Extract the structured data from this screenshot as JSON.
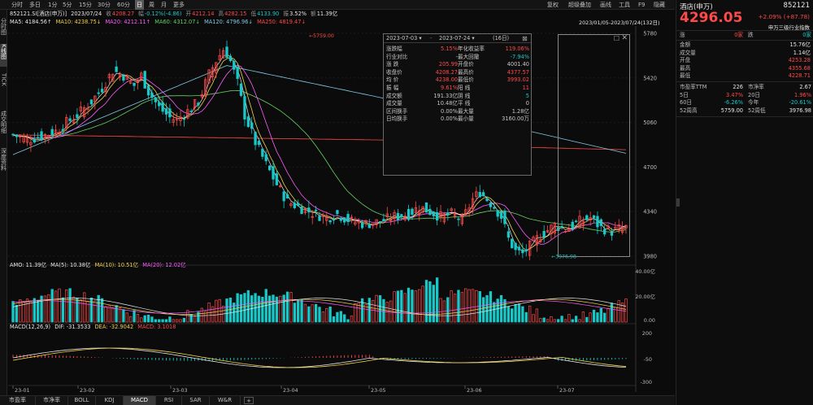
{
  "toolbar": {
    "periods": [
      "分时",
      "多日",
      "1分",
      "5分",
      "15分",
      "30分",
      "60分",
      "日",
      "周",
      "月",
      "更多"
    ],
    "active_period": "日",
    "right_items": [
      "复权",
      "超级叠加",
      "画线",
      "工具",
      "F9",
      "隐藏"
    ]
  },
  "left_tabs": [
    {
      "label": "分时图",
      "active": false
    },
    {
      "label": "K线图",
      "active": true
    },
    {
      "label": "TICK",
      "active": false
    },
    {
      "label": "成交明细",
      "active": false
    },
    {
      "label": "深度资料",
      "active": false
    }
  ],
  "info": {
    "code_name": "852121.SI[酒店(申万)]",
    "date": "2023/07/24",
    "open_label": "收",
    "close": "4208.27",
    "chg_label": "幅",
    "chg": "-0.12%(-4.86)",
    "open2_label": "开",
    "open": "4212.14",
    "high_label": "高",
    "high": "4282.15",
    "low_label": "低",
    "low": "4133.90",
    "amp_label": "振",
    "amp": "3.52%",
    "vol_label": "额",
    "vol": "11.39亿",
    "range_text": "2023/01/05-2023/07/24(132日)"
  },
  "ma_line": [
    {
      "label": "MA5: 4184.56↑",
      "color": "#e6e6e6"
    },
    {
      "label": "MA10: 4238.75↓",
      "color": "#f2d24a"
    },
    {
      "label": "MA20: 4212.11↑",
      "color": "#ff5cff"
    },
    {
      "label": "MA60: 4312.07↓",
      "color": "#64d264"
    },
    {
      "label": "MA120: 4796.96↓",
      "color": "#7ec8e3"
    },
    {
      "label": "MA250: 4819.47↓",
      "color": "#ff4a4a"
    }
  ],
  "amo_line": [
    {
      "label": "AMO: 11.39亿",
      "color": "#e6e6e6"
    },
    {
      "label": "MA(5): 10.38亿",
      "color": "#e6e6e6"
    },
    {
      "label": "MA(10): 10.51亿",
      "color": "#f2d24a"
    },
    {
      "label": "MA(20): 12.02亿",
      "color": "#ff5cff"
    }
  ],
  "macd_line": [
    {
      "label": "MACD(12,26,9)",
      "color": "#e6e6e6"
    },
    {
      "label": "DIF: -31.3533",
      "color": "#e6e6e6"
    },
    {
      "label": "DEA: -32.9042",
      "color": "#f2d24a"
    },
    {
      "label": "MACD: 3.1018",
      "color": "#ff4a4a"
    }
  ],
  "price_axis": [
    "5780",
    "5420",
    "5060",
    "4700",
    "4340",
    "3980"
  ],
  "vol_axis": [
    "40.00亿",
    "20.00亿",
    "0.00"
  ],
  "macd_axis": [
    "200",
    "-50",
    "-300"
  ],
  "date_axis": [
    "23-01",
    "23-02",
    "23-03",
    "23-04",
    "23-05",
    "23-06",
    "23-07"
  ],
  "annotations": {
    "peak": "5759.00",
    "trough": "3976.98"
  },
  "popup": {
    "start": "2023-07-03",
    "end": "2023-07-24",
    "days": "(16日)",
    "rows": [
      [
        {
          "k": "涨跌幅",
          "v": "5.15%",
          "c": "#ff4a4a"
        },
        {
          "k": "年化收益率",
          "v": "119.06%",
          "c": "#ff4a4a"
        }
      ],
      [
        {
          "k": "行业对比",
          "v": "-",
          "c": "#c8c8c8"
        },
        {
          "k": "最大回撤",
          "v": "-7.94%",
          "c": "#19c8c8"
        }
      ],
      [
        {
          "k": "涨  跌",
          "v": "205.99",
          "c": "#ff4a4a"
        },
        {
          "k": "开盘价",
          "v": "4001.40",
          "c": "#c8c8c8"
        }
      ],
      [
        {
          "k": "收盘价",
          "v": "4208.27",
          "c": "#ff4a4a"
        },
        {
          "k": "最高价",
          "v": "4377.57",
          "c": "#ff4a4a"
        }
      ],
      [
        {
          "k": "均  价",
          "v": "4238.00",
          "c": "#ff4a4a"
        },
        {
          "k": "最低价",
          "v": "3993.02",
          "c": "#ff4a4a"
        }
      ],
      [
        {
          "k": "振  幅",
          "v": "9.61%",
          "c": "#ff4a4a"
        },
        {
          "k": "阳  线",
          "v": "11",
          "c": "#ff4a4a"
        }
      ],
      [
        {
          "k": "成交额",
          "v": "191.33亿",
          "c": "#c8c8c8"
        },
        {
          "k": "阴  线",
          "v": "5",
          "c": "#19c8c8"
        }
      ],
      [
        {
          "k": "成交量",
          "v": "10.48亿",
          "c": "#c8c8c8"
        },
        {
          "k": "平  线",
          "v": "0",
          "c": "#c8c8c8"
        }
      ],
      [
        {
          "k": "区间换手",
          "v": "0.00%",
          "c": "#c8c8c8"
        },
        {
          "k": "最大量",
          "v": "1.28亿",
          "c": "#c8c8c8"
        }
      ],
      [
        {
          "k": "日均换手",
          "v": "0.00%",
          "c": "#c8c8c8"
        },
        {
          "k": "最小量",
          "v": "3160.00万",
          "c": "#c8c8c8"
        }
      ]
    ]
  },
  "right": {
    "name": "酒店(申万)",
    "code": "852121",
    "price": "4296.05",
    "change": "+2.09% (+87.78)",
    "index_name": "申万三级行业指数",
    "up_label": "涨",
    "up_val": "0家",
    "down_label": "跌",
    "down_val": "0家",
    "rows": [
      {
        "k": "金额",
        "v": "15.76亿",
        "c": "#e6e6e6"
      },
      {
        "k": "成交量",
        "v": "1.14亿",
        "c": "#e6e6e6"
      },
      {
        "k": "开盘",
        "v": "4253.28",
        "c": "#ff4a4a"
      },
      {
        "k": "最高",
        "v": "4355.68",
        "c": "#ff4a4a"
      },
      {
        "k": "最低",
        "v": "4228.71",
        "c": "#ff4a4a"
      }
    ],
    "pairs": [
      [
        {
          "k": "市盈率TTM",
          "v": "226",
          "c": "#e6e6e6"
        },
        {
          "k": "市净率",
          "v": "2.67",
          "c": "#e6e6e6"
        }
      ],
      [
        {
          "k": "5日",
          "v": "3.47%",
          "c": "#ff4a4a"
        },
        {
          "k": "20日",
          "v": "1.96%",
          "c": "#ff4a4a"
        }
      ],
      [
        {
          "k": "60日",
          "v": "-6.26%",
          "c": "#19c8c8"
        },
        {
          "k": "今年",
          "v": "-20.61%",
          "c": "#19c8c8"
        }
      ],
      [
        {
          "k": "52周高",
          "v": "5759.00",
          "c": "#e6e6e6"
        },
        {
          "k": "52周低",
          "v": "3976.98",
          "c": "#e6e6e6"
        }
      ]
    ]
  },
  "bottom_tabs": [
    "市盈率",
    "市净率",
    "BOLL",
    "KDJ",
    "MACD",
    "RSI",
    "SAR",
    "W&R",
    "+"
  ],
  "active_bottom": "MACD",
  "colors": {
    "up": "#ff4a4a",
    "down": "#19c8c8",
    "bg": "#0b0b0b"
  }
}
